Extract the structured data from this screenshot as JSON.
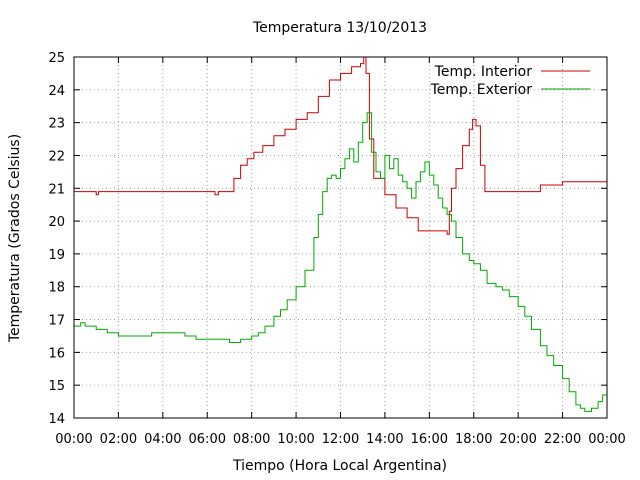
{
  "chart_data": {
    "type": "line",
    "title": "Temperatura 13/10/2013",
    "xlabel": "Tiempo (Hora Local Argentina)",
    "ylabel": "Temperatura (Grados Celsius)",
    "xlim": [
      0,
      24
    ],
    "ylim": [
      14,
      25
    ],
    "x_ticks": [
      0,
      2,
      4,
      6,
      8,
      10,
      12,
      14,
      16,
      18,
      20,
      22,
      24
    ],
    "x_tick_labels": [
      "00:00",
      "02:00",
      "04:00",
      "06:00",
      "08:00",
      "10:00",
      "12:00",
      "14:00",
      "16:00",
      "18:00",
      "20:00",
      "22:00",
      "00:00"
    ],
    "y_ticks": [
      14,
      15,
      16,
      17,
      18,
      19,
      20,
      21,
      22,
      23,
      24,
      25
    ],
    "y_tick_labels": [
      "14",
      "15",
      "16",
      "17",
      "18",
      "19",
      "20",
      "21",
      "22",
      "23",
      "24",
      "25"
    ],
    "grid": true,
    "legend_position": "top-right",
    "series": [
      {
        "name": "Temp. Interior",
        "color": "#cc0000",
        "x": [
          0,
          0.9,
          1.0,
          1.1,
          2,
          3,
          4,
          5,
          6,
          6.2,
          6.35,
          6.5,
          7.0,
          7.2,
          7.5,
          7.8,
          8.1,
          8.5,
          9.0,
          9.5,
          10.0,
          10.5,
          11.0,
          11.5,
          12.0,
          12.5,
          12.9,
          13.05,
          13.15,
          13.3,
          13.5,
          14.0,
          14.5,
          15.0,
          15.5,
          16.0,
          16.5,
          16.8,
          16.9,
          17.0,
          17.2,
          17.5,
          17.8,
          17.95,
          18.1,
          18.3,
          18.5,
          19,
          20,
          20.6,
          21.0,
          21.5,
          22,
          23,
          24
        ],
        "y": [
          20.9,
          20.9,
          20.8,
          20.9,
          20.9,
          20.9,
          20.9,
          20.9,
          20.9,
          20.9,
          20.8,
          20.9,
          20.9,
          21.3,
          21.7,
          21.9,
          22.1,
          22.3,
          22.6,
          22.8,
          23.1,
          23.3,
          23.8,
          24.3,
          24.5,
          24.7,
          24.8,
          25.0,
          24.5,
          22.5,
          21.3,
          20.8,
          20.4,
          20.1,
          19.7,
          19.7,
          19.7,
          19.6,
          20.3,
          21.0,
          21.6,
          22.3,
          22.8,
          23.1,
          22.9,
          21.7,
          20.9,
          20.9,
          20.9,
          20.9,
          21.1,
          21.1,
          21.2,
          21.2,
          21.2
        ]
      },
      {
        "name": "Temp. Exterior",
        "color": "#00aa00",
        "x": [
          0,
          0.3,
          0.5,
          1.0,
          1.5,
          2.0,
          2.5,
          3.0,
          3.5,
          4.0,
          4.5,
          5.0,
          5.5,
          6.0,
          6.5,
          7.0,
          7.5,
          8.0,
          8.3,
          8.6,
          9.0,
          9.3,
          9.6,
          10.0,
          10.4,
          10.8,
          11.0,
          11.2,
          11.4,
          11.6,
          11.8,
          12.0,
          12.2,
          12.4,
          12.6,
          12.8,
          13.0,
          13.2,
          13.4,
          13.6,
          13.8,
          14.0,
          14.2,
          14.4,
          14.6,
          14.8,
          15.0,
          15.2,
          15.4,
          15.6,
          15.8,
          16.0,
          16.2,
          16.4,
          16.6,
          16.8,
          17.0,
          17.2,
          17.5,
          17.8,
          18.0,
          18.3,
          18.6,
          19.0,
          19.3,
          19.6,
          20.0,
          20.3,
          20.6,
          21.0,
          21.3,
          21.6,
          22.0,
          22.3,
          22.6,
          22.8,
          23.0,
          23.3,
          23.6,
          23.8,
          24.0
        ],
        "y": [
          16.8,
          16.9,
          16.8,
          16.7,
          16.6,
          16.5,
          16.5,
          16.5,
          16.6,
          16.6,
          16.6,
          16.5,
          16.4,
          16.4,
          16.4,
          16.3,
          16.4,
          16.5,
          16.6,
          16.8,
          17.1,
          17.3,
          17.6,
          18.0,
          18.5,
          19.5,
          20.2,
          20.9,
          21.3,
          21.4,
          21.3,
          21.6,
          21.9,
          22.2,
          21.8,
          22.4,
          23.0,
          23.3,
          22.1,
          21.5,
          21.3,
          22.0,
          21.6,
          21.9,
          21.4,
          21.2,
          21.0,
          20.7,
          21.2,
          21.5,
          21.8,
          21.4,
          21.1,
          20.7,
          20.4,
          20.2,
          20.0,
          19.5,
          19.0,
          18.8,
          18.7,
          18.5,
          18.1,
          18.0,
          17.9,
          17.7,
          17.4,
          17.1,
          16.7,
          16.2,
          15.9,
          15.6,
          15.2,
          14.8,
          14.4,
          14.3,
          14.2,
          14.3,
          14.5,
          14.7,
          14.9
        ]
      }
    ]
  }
}
